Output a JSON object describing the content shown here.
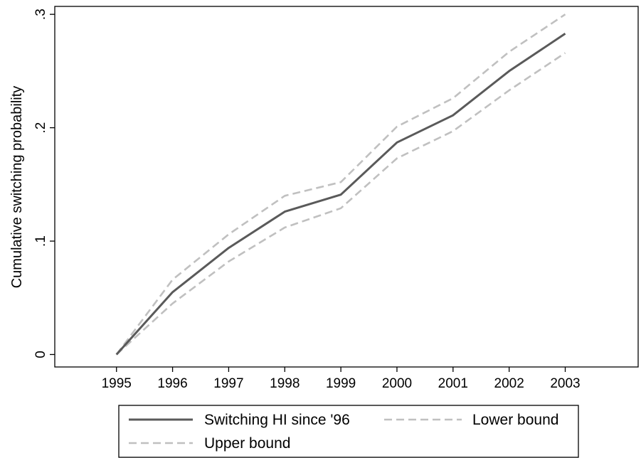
{
  "chart_data": {
    "type": "line",
    "title": "",
    "xlabel": "",
    "ylabel": "Cumulative switching probability",
    "x": [
      1995,
      1996,
      1997,
      1998,
      1999,
      2000,
      2001,
      2002,
      2003
    ],
    "x_ticks": [
      "1995",
      "1996",
      "1997",
      "1998",
      "1999",
      "2000",
      "2001",
      "2002",
      "2003"
    ],
    "y_ticks": [
      {
        "value": 0,
        "label": "0"
      },
      {
        "value": 0.1,
        "label": ".1"
      },
      {
        "value": 0.2,
        "label": ".2"
      },
      {
        "value": 0.3,
        "label": ".3"
      }
    ],
    "xlim": [
      1993.9,
      2004.3
    ],
    "ylim": [
      -0.011,
      0.307
    ],
    "grid": false,
    "legend_position": "bottom",
    "series": [
      {
        "name": "Switching HI since '96",
        "color": "#5a5a5a",
        "dash": "solid",
        "values": [
          0,
          0.055,
          0.094,
          0.126,
          0.141,
          0.187,
          0.211,
          0.25,
          0.283
        ]
      },
      {
        "name": "Lower bound",
        "color": "#c0c0c0",
        "dash": "dashed",
        "values": [
          0,
          0.045,
          0.082,
          0.112,
          0.129,
          0.173,
          0.197,
          0.233,
          0.266
        ]
      },
      {
        "name": "Upper bound",
        "color": "#c0c0c0",
        "dash": "dashed",
        "values": [
          0,
          0.066,
          0.106,
          0.14,
          0.152,
          0.201,
          0.226,
          0.267,
          0.3
        ]
      }
    ]
  }
}
